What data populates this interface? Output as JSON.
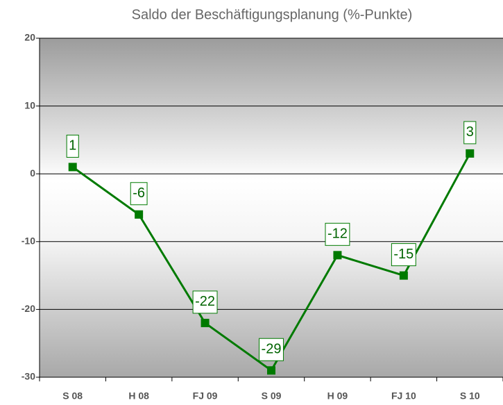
{
  "chart_data": {
    "type": "line",
    "title": "Saldo der Beschäftigungsplanung (%-Punkte)",
    "categories": [
      "S 08",
      "H 08",
      "FJ 09",
      "S 09",
      "H 09",
      "FJ 10",
      "S 10"
    ],
    "values": [
      1,
      -6,
      -22,
      -29,
      -12,
      -15,
      3
    ],
    "color": "#007a00",
    "ylim": [
      -30,
      20
    ],
    "yticks": [
      -30,
      -20,
      -10,
      0,
      10,
      20
    ],
    "grid": true
  }
}
